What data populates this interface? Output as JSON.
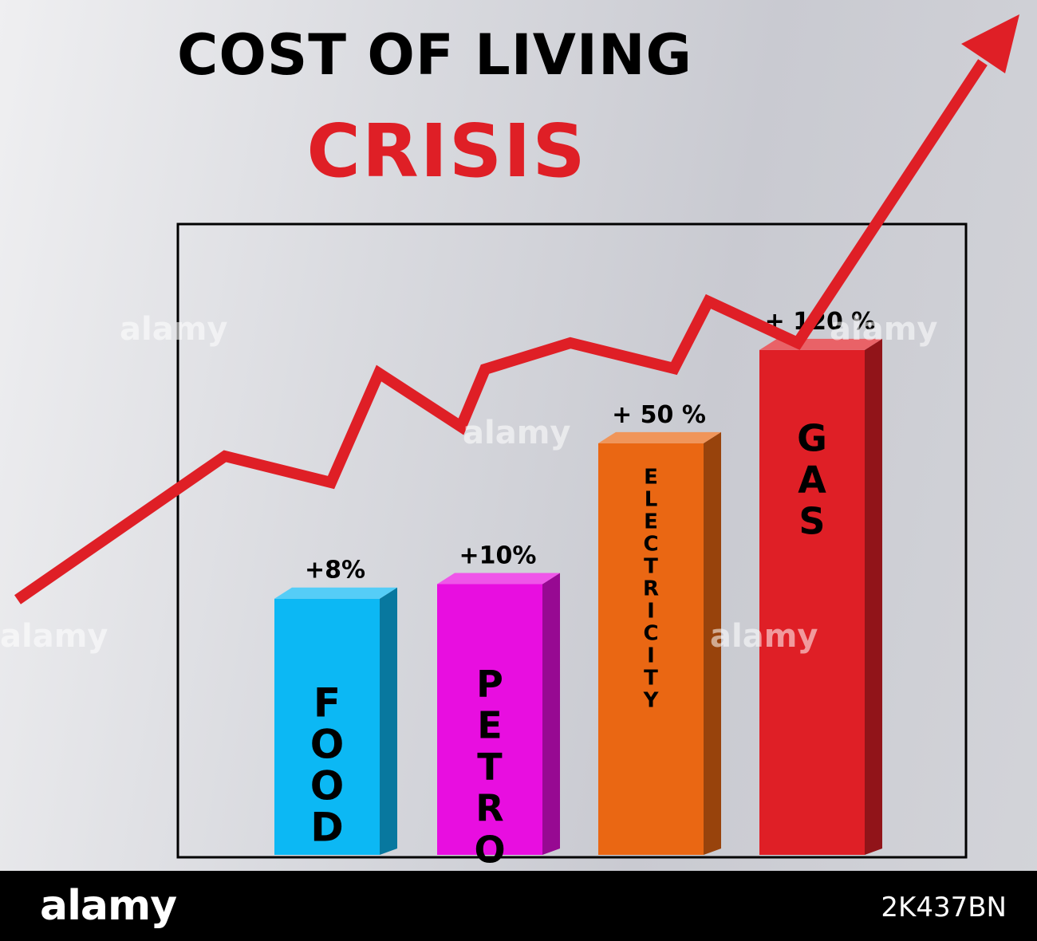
{
  "chart_data": {
    "type": "bar",
    "title": "COST OF LIVING",
    "subtitle": "CRISIS",
    "categories": [
      "FOOD",
      "PETROL",
      "ELECTRICITY",
      "GAS"
    ],
    "values": [
      8,
      10,
      50,
      120
    ],
    "value_labels": [
      "+8%",
      "+10%",
      "+ 50 %",
      "+ 120 %"
    ],
    "bar_colors": [
      "#0cb8f4",
      "#e80ee0",
      "#ea6713",
      "#df1f26"
    ],
    "trend_arrow_color": "#df1f26",
    "legend": "none",
    "grid": false
  },
  "watermark": {
    "text": "alamy"
  },
  "footer": {
    "logo": "alamy",
    "image_id": "2K437BN"
  }
}
